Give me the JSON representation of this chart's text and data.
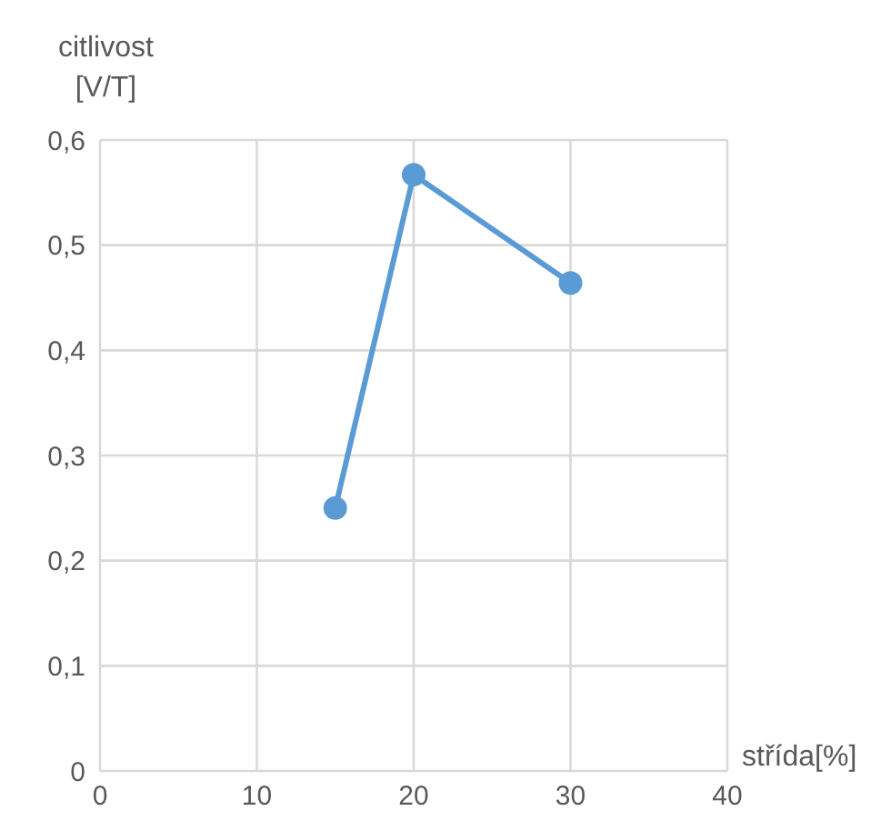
{
  "chart_data": {
    "type": "line",
    "xlabel": "střída[%]",
    "ylabel": "citlivost\n[V/T]",
    "x": [
      15,
      20,
      30
    ],
    "series": [
      {
        "color": "#5b9bd5",
        "values": [
          0.25,
          0.567,
          0.464
        ]
      }
    ],
    "xlim": [
      0,
      40
    ],
    "xticks": [
      0,
      10,
      20,
      30,
      40
    ],
    "ylim": [
      0,
      0.6
    ],
    "yticks": [
      0,
      {
        "value": 0.1,
        "label": "0,1"
      },
      {
        "value": 0.2,
        "label": "0,2"
      },
      {
        "value": 0.3,
        "label": "0,3"
      },
      {
        "value": 0.4,
        "label": "0,4"
      },
      {
        "value": 0.5,
        "label": "0,5"
      },
      {
        "value": 0.6,
        "label": "0,6"
      }
    ],
    "grid": true,
    "marker": "circle",
    "line_style": "solid"
  }
}
